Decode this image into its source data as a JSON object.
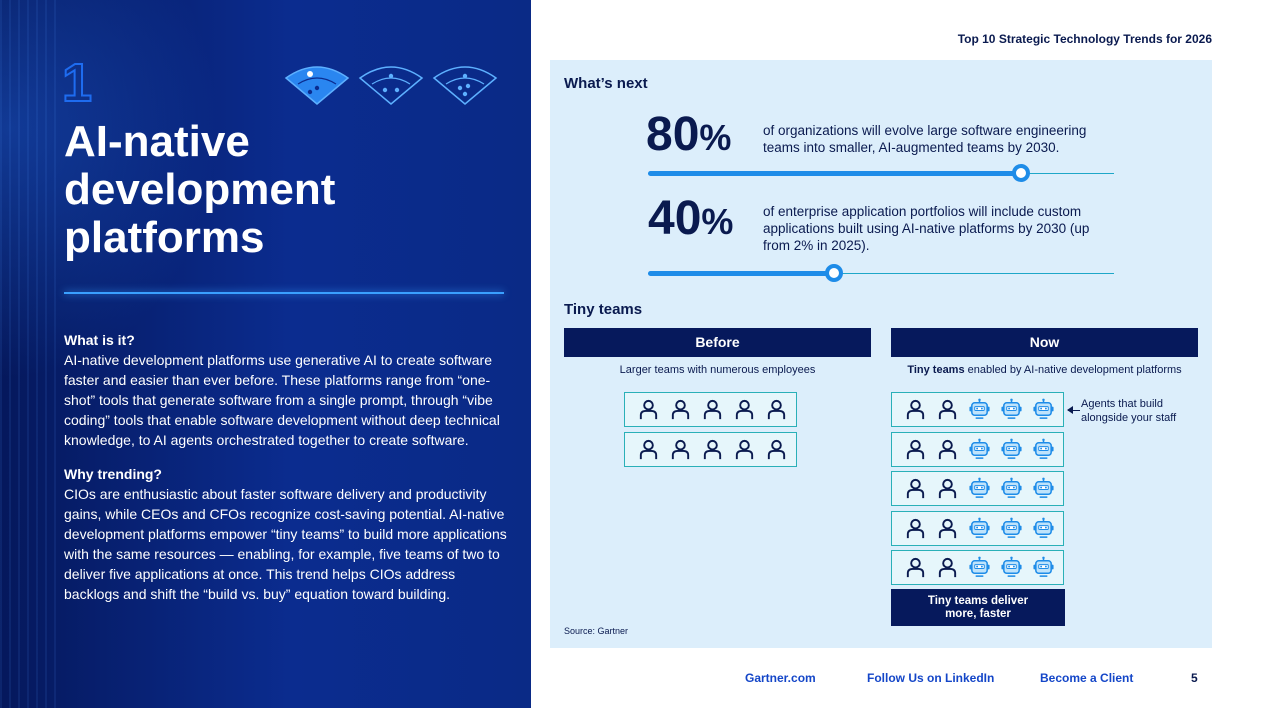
{
  "left": {
    "trend_number": "1",
    "title_lines": [
      "AI-native",
      "development",
      "platforms"
    ],
    "what_heading": "What is it?",
    "what_body": "AI-native development platforms use generative AI to create software faster and easier than ever before. These platforms range from “one-shot” tools that generate software from a single prompt, through “vibe coding” tools that enable software development without deep technical knowledge, to AI agents orchestrated together to create software.",
    "why_heading": "Why trending?",
    "why_body": "CIOs are enthusiastic about faster software delivery and productivity gains, while CEOs and CFOs recognize cost-saving potential. AI-native development platforms empower “tiny teams” to build more applications with the same resources — enabling, for example, five teams of two to deliver five applications at once. This trend helps CIOs address backlogs and shift the “build vs. buy” equation toward building."
  },
  "header": {
    "doc_title": "Top 10 Strategic Technology Trends for 2026"
  },
  "whats_next": {
    "heading": "What’s next",
    "stats": [
      {
        "number": "80",
        "unit": "%",
        "text": "of organizations will evolve large software engineering teams into smaller, AI-augmented teams by 2030.",
        "progress": 0.8
      },
      {
        "number": "40",
        "unit": "%",
        "text": "of enterprise application portfolios will include custom applications built using AI-native platforms by 2030 (up from 2% in 2025).",
        "progress": 0.4
      }
    ]
  },
  "tiny_teams": {
    "heading": "Tiny teams",
    "before": {
      "label": "Before",
      "subtitle": "Larger teams with numerous employees",
      "rows": 2,
      "people_per_row": 5,
      "agents_per_row": 0
    },
    "now": {
      "label": "Now",
      "subtitle_bold": "Tiny teams",
      "subtitle_rest": " enabled by AI-native development platforms",
      "rows": 5,
      "people_per_row": 2,
      "agents_per_row": 3
    },
    "callout": "Agents that build alongside your staff",
    "deliver_lines": [
      "Tiny teams deliver",
      "more, faster"
    ],
    "source": "Source: Gartner"
  },
  "footer": {
    "links": [
      "Gartner.com",
      "Follow Us on LinkedIn",
      "Become a Client"
    ],
    "page_number": "5"
  },
  "colors": {
    "navy": "#06195c",
    "blue": "#1e8ce8",
    "panel_bg": "#dceefb",
    "teal": "#2ab0b8"
  },
  "icons": [
    "fan-icon",
    "person-icon",
    "robot-agent-icon"
  ]
}
